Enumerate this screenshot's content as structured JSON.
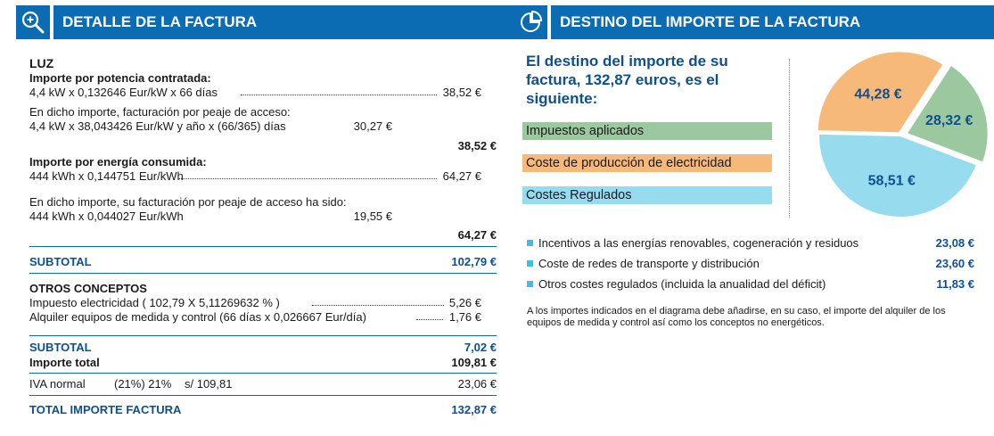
{
  "left_header": {
    "title": "DETALLE DE LA FACTURA",
    "icon": "magnifier-icon"
  },
  "right_header": {
    "title": "DESTINO DEL IMPORTE DE LA FACTURA",
    "icon": "pie-chart-icon"
  },
  "luz": {
    "title": "LUZ",
    "potencia_label": "Importe por potencia contratada:",
    "potencia_calc": "4,4 kW x 0,132646 Eur/kW x 66 días",
    "potencia_value": "38,52 €",
    "peaje_pot_line1": "En dicho importe, facturación por peaje de acceso:",
    "peaje_pot_calc": "4,4 kW x 38,043426 Eur/kW y año x (66/365) días",
    "peaje_pot_value": "30,27 €",
    "potencia_total": "38,52 €",
    "energia_label": "Importe por energía consumida:",
    "energia_calc": "444 kWh x 0,144751 Eur/kWh",
    "energia_value": "64,27 €",
    "peaje_en_line1": "En dicho importe, su facturación por peaje de acceso ha sido:",
    "peaje_en_calc": "444 kWh x 0,044027 Eur/kWh",
    "peaje_en_value": "19,55 €",
    "energia_total": "64,27 €"
  },
  "subtotal1": {
    "label": "SUBTOTAL",
    "value": "102,79 €"
  },
  "otros": {
    "title": "OTROS CONCEPTOS",
    "impuesto_label": "Impuesto electricidad ( 102,79 X 5,11269632 % )",
    "impuesto_value": "5,26 €",
    "alquiler_label": "Alquiler equipos de medida y control (66 días x 0,026667 Eur/día)",
    "alquiler_value": "1,76 €"
  },
  "subtotal2": {
    "label": "SUBTOTAL",
    "value": "7,02 €"
  },
  "importe_total": {
    "label": "Importe total",
    "value": "109,81 €"
  },
  "iva": {
    "label": "IVA normal",
    "rate": "(21%) 21%",
    "base": "s/ 109,81",
    "value": "23,06 €"
  },
  "total_factura": {
    "label": "TOTAL IMPORTE FACTURA",
    "value": "132,87 €"
  },
  "destino": {
    "intro": "El destino del importe de su factura, 132,87 euros, es el siguiente:",
    "legend": [
      {
        "label": "Impuestos aplicados",
        "color": "#9cc89f"
      },
      {
        "label": "Coste de producción de electricidad",
        "color": "#f7b97a"
      },
      {
        "label": "Costes Regulados",
        "color": "#97dbef"
      }
    ],
    "regulated_items": [
      {
        "label": "Incentivos a las energías renovables, cogeneración y residuos",
        "value": "23,08 €"
      },
      {
        "label": "Coste de redes de transporte y distribución",
        "value": "23,60 €"
      },
      {
        "label": "Otros costes regulados (incluida la anualidad del déficit)",
        "value": "11,83 €"
      }
    ],
    "note": "A los importes indicados en el diagrama debe añadirse, en su caso, el importe del alquiler de los equipos de medida y control así como los conceptos no energéticos."
  },
  "chart_data": {
    "type": "pie",
    "slices": [
      {
        "label": "Impuestos aplicados",
        "value": 28.32,
        "display": "28,32 €",
        "color": "#9cc89f"
      },
      {
        "label": "Costes Regulados",
        "value": 58.51,
        "display": "58,51 €",
        "color": "#97dbef"
      },
      {
        "label": "Coste de producción de electricidad",
        "value": 44.28,
        "display": "44,28 €",
        "color": "#f7b97a"
      }
    ]
  }
}
